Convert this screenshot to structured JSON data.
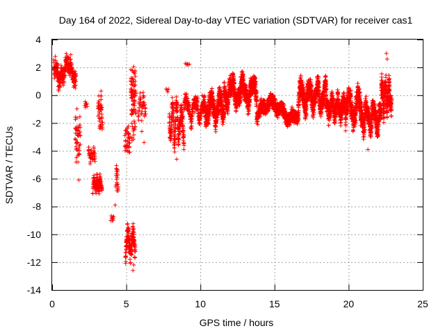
{
  "chart_data": {
    "type": "scatter",
    "title": "Day 164 of 2022, Sidereal Day-to-day VTEC variation (SDTVAR) for receiver cas1",
    "xlabel": "GPS time / hours",
    "ylabel": "SDTVAR / TECUs",
    "xlim": [
      0,
      25
    ],
    "ylim": [
      -14,
      4
    ],
    "xticks": [
      0,
      5,
      10,
      15,
      20,
      25
    ],
    "yticks": [
      -14,
      -12,
      -10,
      -8,
      -6,
      -4,
      -2,
      0,
      2,
      4
    ],
    "grid": true,
    "marker": "+",
    "color": "#ff0000",
    "series": [
      {
        "name": "SDTVAR",
        "segments": [
          {
            "x0": 0.1,
            "x1": 1.6,
            "n": 260,
            "mean": 1.7,
            "amp": 0.9,
            "noise": 0.9
          },
          {
            "x0": 1.55,
            "x1": 1.9,
            "n": 50,
            "mean": -3.2,
            "amp": 1.6,
            "noise": 1.0
          },
          {
            "x0": 2.2,
            "x1": 2.35,
            "n": 8,
            "mean": -0.6,
            "amp": 0.3,
            "noise": 0.4
          },
          {
            "x0": 2.45,
            "x1": 2.9,
            "n": 40,
            "mean": -4.3,
            "amp": 0.5,
            "noise": 0.5
          },
          {
            "x0": 2.75,
            "x1": 3.35,
            "n": 110,
            "mean": -6.4,
            "amp": 0.5,
            "noise": 0.5
          },
          {
            "x0": 3.1,
            "x1": 3.4,
            "n": 45,
            "mean": -1.3,
            "amp": 1.2,
            "noise": 0.6
          },
          {
            "x0": 4.0,
            "x1": 4.15,
            "n": 7,
            "mean": -8.8,
            "amp": 0.2,
            "noise": 0.3
          },
          {
            "x0": 4.3,
            "x1": 4.45,
            "n": 22,
            "mean": -6.0,
            "amp": 0.8,
            "noise": 0.8
          },
          {
            "x0": 4.9,
            "x1": 5.25,
            "n": 40,
            "mean": -3.2,
            "amp": 0.8,
            "noise": 0.8
          },
          {
            "x0": 4.95,
            "x1": 5.6,
            "n": 150,
            "mean": -10.6,
            "amp": 1.1,
            "noise": 0.7
          },
          {
            "x0": 5.3,
            "x1": 5.65,
            "n": 70,
            "mean": 0.3,
            "amp": 1.6,
            "noise": 0.8
          },
          {
            "x0": 5.35,
            "x1": 5.6,
            "n": 25,
            "mean": -1.8,
            "amp": 1.5,
            "noise": 1.0
          },
          {
            "x0": 5.8,
            "x1": 6.3,
            "n": 45,
            "mean": -0.8,
            "amp": 0.9,
            "noise": 0.8
          },
          {
            "x0": 7.7,
            "x1": 7.85,
            "n": 4,
            "mean": 0.4,
            "amp": 0.1,
            "noise": 0.3
          },
          {
            "x0": 7.9,
            "x1": 8.9,
            "n": 220,
            "mean": -2.0,
            "amp": 1.6,
            "noise": 1.0
          },
          {
            "x0": 9.0,
            "x1": 9.25,
            "n": 5,
            "mean": 2.3,
            "amp": 0.1,
            "noise": 0.2
          },
          {
            "x0": 8.9,
            "x1": 10.2,
            "n": 200,
            "mean": -1.0,
            "amp": 0.8,
            "noise": 0.8
          },
          {
            "x0": 10.2,
            "x1": 11.6,
            "n": 500,
            "mean": -0.9,
            "amp": 1.0,
            "noise": 0.9
          },
          {
            "x0": 11.6,
            "x1": 13.8,
            "n": 800,
            "mean": 0.2,
            "amp": 1.0,
            "noise": 0.9
          },
          {
            "x0": 13.8,
            "x1": 16.6,
            "n": 800,
            "mean": -1.1,
            "amp": 0.8,
            "noise": 0.7
          },
          {
            "x0": 16.6,
            "x1": 18.5,
            "n": 650,
            "mean": -0.1,
            "amp": 1.0,
            "noise": 0.9
          },
          {
            "x0": 18.5,
            "x1": 19.8,
            "n": 420,
            "mean": -0.9,
            "amp": 0.8,
            "noise": 0.8
          },
          {
            "x0": 19.8,
            "x1": 21.0,
            "n": 400,
            "mean": -0.9,
            "amp": 1.2,
            "noise": 0.9
          },
          {
            "x0": 21.0,
            "x1": 22.2,
            "n": 380,
            "mean": -1.6,
            "amp": 1.0,
            "noise": 0.9
          },
          {
            "x0": 22.2,
            "x1": 22.9,
            "n": 220,
            "mean": -0.1,
            "amp": 1.3,
            "noise": 0.9
          }
        ],
        "outliers": [
          {
            "x": 22.55,
            "y": 3.0
          },
          {
            "x": 22.6,
            "y": 2.6
          },
          {
            "x": 3.3,
            "y": 0.3
          },
          {
            "x": 5.45,
            "y": -12.6
          },
          {
            "x": 5.5,
            "y": -12.2
          },
          {
            "x": 1.8,
            "y": -6.1
          },
          {
            "x": 4.25,
            "y": -7.9
          },
          {
            "x": 8.4,
            "y": -4.6
          },
          {
            "x": 21.3,
            "y": -3.9
          },
          {
            "x": 6.2,
            "y": -3.4
          },
          {
            "x": 6.05,
            "y": -2.6
          },
          {
            "x": 3.95,
            "y": -9.0
          }
        ]
      }
    ]
  }
}
